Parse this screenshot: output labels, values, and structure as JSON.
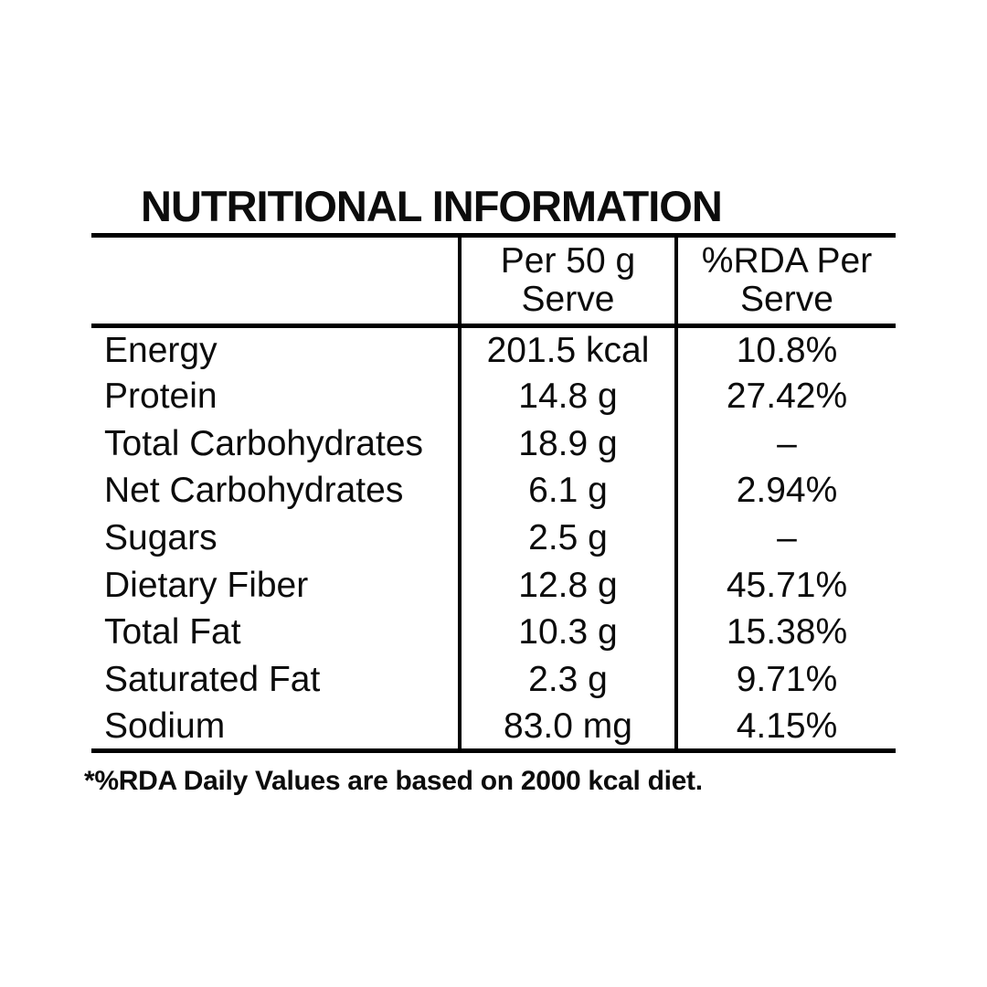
{
  "colors": {
    "background": "#ffffff",
    "text": "#0c0c0c",
    "rule": "#000000"
  },
  "title": "NUTRITIONAL INFORMATION",
  "table": {
    "header": {
      "blank": "",
      "per_serve": "Per 50 g\nServe",
      "rda": "%RDA Per\nServe"
    },
    "rows": [
      {
        "label": "Energy",
        "per_serve": "201.5 kcal",
        "rda": "10.8%"
      },
      {
        "label": "Protein",
        "per_serve": "14.8 g",
        "rda": "27.42%"
      },
      {
        "label": "Total Carbohydrates",
        "per_serve": "18.9 g",
        "rda": "–"
      },
      {
        "label": "Net Carbohydrates",
        "per_serve": "6.1 g",
        "rda": "2.94%"
      },
      {
        "label": "Sugars",
        "per_serve": "2.5 g",
        "rda": "–"
      },
      {
        "label": "Dietary Fiber",
        "per_serve": "12.8 g",
        "rda": "45.71%"
      },
      {
        "label": "Total Fat",
        "per_serve": "10.3 g",
        "rda": "15.38%"
      },
      {
        "label": "Saturated Fat",
        "per_serve": "2.3 g",
        "rda": "9.71%"
      },
      {
        "label": "Sodium",
        "per_serve": "83.0 mg",
        "rda": "4.15%"
      }
    ]
  },
  "footnote": "*%RDA Daily Values are based on 2000 kcal diet."
}
